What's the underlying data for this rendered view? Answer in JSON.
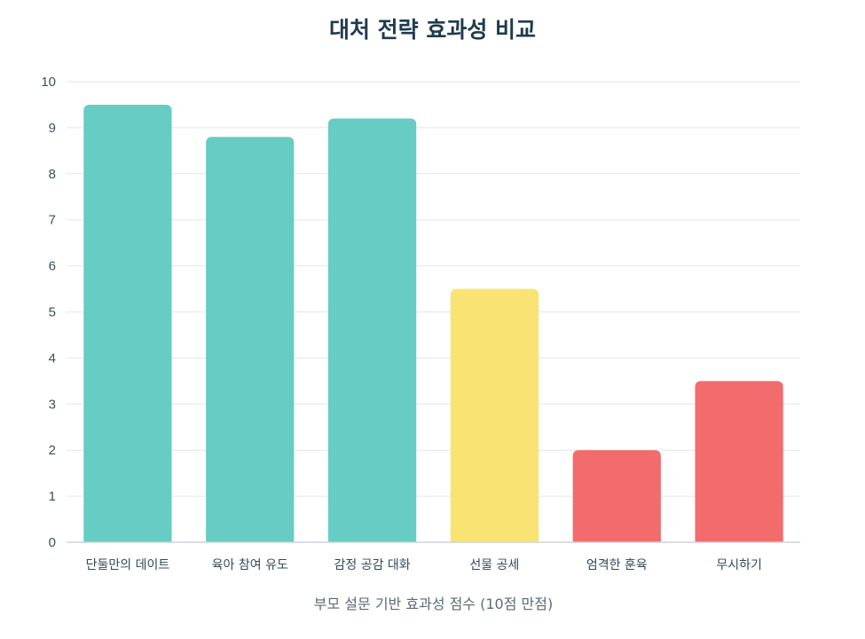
{
  "chart_data": {
    "type": "bar",
    "title": "대처 전략 효과성 비교",
    "xlabel": "부모 설문 기반 효과성 점수 (10점 만점)",
    "ylabel": "",
    "ylim": [
      0,
      10
    ],
    "yticks": [
      "0",
      "1",
      "2",
      "3",
      "4",
      "5",
      "6",
      "7",
      "8",
      "9",
      "10"
    ],
    "categories": [
      "단둘만의 데이트",
      "육아 참여 유도",
      "감정 공감 대화",
      "선물 공세",
      "엄격한 훈육",
      "무시하기"
    ],
    "values": [
      9.5,
      8.8,
      9.2,
      5.5,
      2.0,
      3.5
    ],
    "colors": [
      "#66ccc4",
      "#66ccc4",
      "#66ccc4",
      "#f8e373",
      "#f26b6d",
      "#f26b6d"
    ],
    "grid": true,
    "legend": "none"
  }
}
